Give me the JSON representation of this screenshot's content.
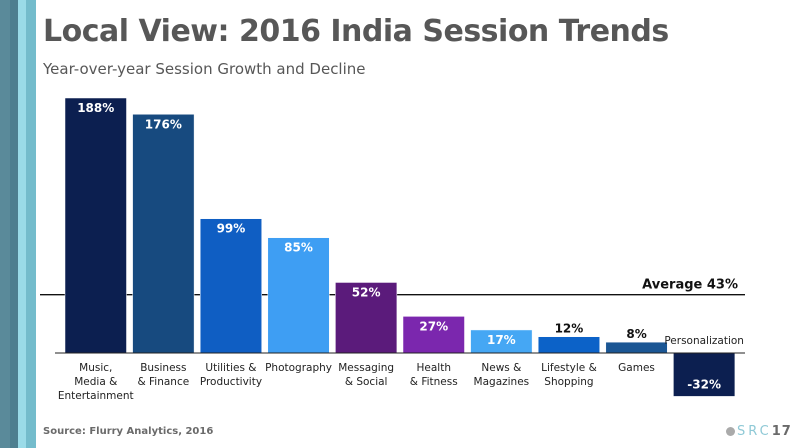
{
  "header": {
    "title": "Local View: 2016 India Session Trends",
    "subtitle": "Year-over-year Session Growth and Decline"
  },
  "footer": {
    "source": "Source: Flurry Analytics, 2016",
    "logo_text": "SRC",
    "logo_number": "17"
  },
  "decor_colors": [
    "#5a8a9a",
    "#4e7f90",
    "#9adbe8",
    "#74bccc"
  ],
  "chart_data": {
    "type": "bar",
    "title": "",
    "xlabel": "",
    "ylabel": "",
    "grid": false,
    "ylim": [
      -32,
      188
    ],
    "categories": [
      "Music, Media & Entertainment",
      "Business & Finance",
      "Utilities & Productivity",
      "Photography",
      "Messaging & Social",
      "Health & Fitness",
      "News & Magazines",
      "Lifestyle & Shopping",
      "Games",
      "Personalization"
    ],
    "category_lines": [
      [
        "Music,",
        "Media &",
        "Entertainment"
      ],
      [
        "Business",
        "& Finance"
      ],
      [
        "Utilities &",
        "Productivity"
      ],
      [
        "Photography"
      ],
      [
        "Messaging",
        "& Social"
      ],
      [
        "Health",
        "& Fitness"
      ],
      [
        "News &",
        "Magazines"
      ],
      [
        "Lifestyle &",
        "Shopping"
      ],
      [
        "Games"
      ],
      [
        "Personalization"
      ]
    ],
    "values": [
      188,
      176,
      99,
      85,
      52,
      27,
      17,
      12,
      8,
      -32
    ],
    "data_labels": [
      "188%",
      "176%",
      "99%",
      "85%",
      "52%",
      "27%",
      "17%",
      "12%",
      "8%",
      "-32%"
    ],
    "colors": [
      "#0c1f50",
      "#174a7f",
      "#0f5ec3",
      "#3e9ef3",
      "#5b1b7b",
      "#7b27ae",
      "#45a7f4",
      "#0c62c8",
      "#1b5694",
      "#0c1f50"
    ],
    "reference_line": {
      "label": "Average 43%",
      "value": 43
    }
  }
}
